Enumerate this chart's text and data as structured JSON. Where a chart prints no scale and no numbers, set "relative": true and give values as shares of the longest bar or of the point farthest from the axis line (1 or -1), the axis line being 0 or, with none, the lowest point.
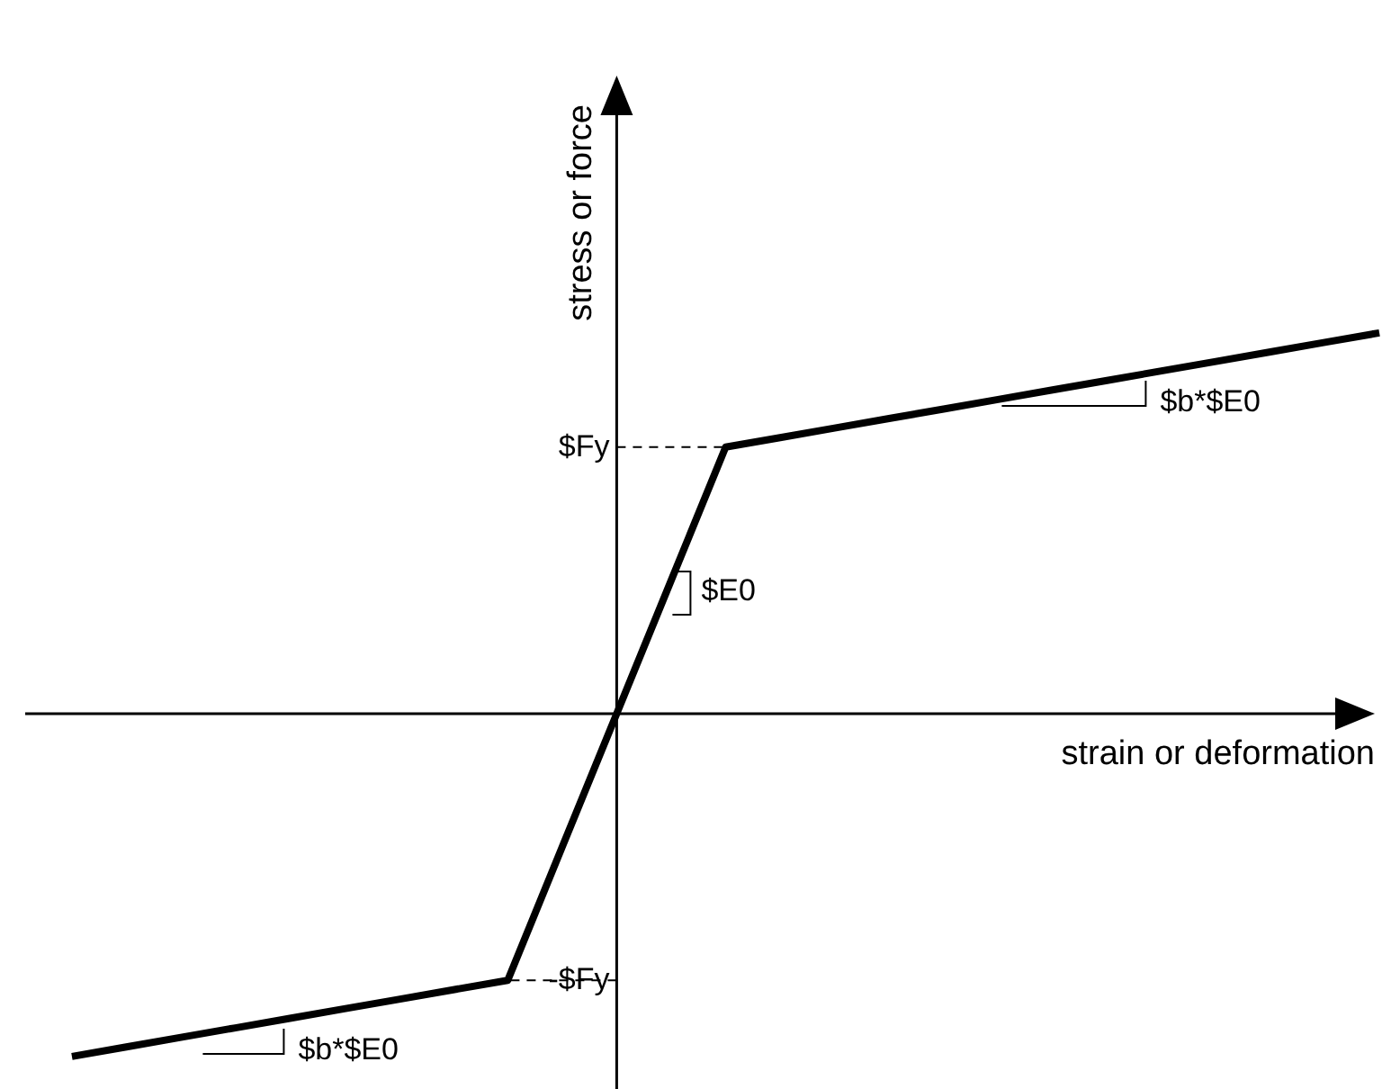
{
  "chart_data": {
    "type": "line",
    "relative": true,
    "xlabel": "strain or deformation",
    "ylabel": "stress or force",
    "categories": [
      null,
      null,
      null,
      null,
      null,
      null,
      null,
      null,
      null,
      null,
      null,
      null,
      null,
      null,
      null,
      null,
      null,
      null,
      null,
      null,
      null,
      null,
      null,
      null,
      null
    ],
    "series": [
      {
        "color": "#000000",
        "values": [
          -0.9,
          -0.875,
          -0.85,
          -0.825,
          -0.8,
          -0.775,
          -0.75,
          -0.725,
          -0.7,
          -0.35,
          0,
          0.35,
          0.7,
          0.725,
          0.75,
          0.775,
          0.8,
          0.825,
          0.85,
          0.875,
          0.9,
          0.925,
          0.95,
          0.975,
          1
        ]
      }
    ],
    "ref_lines": [
      {
        "axis": "y",
        "value": 0.7,
        "label": "$Fy",
        "line_style": "dashed"
      },
      {
        "axis": "y",
        "value": -0.7,
        "label": "-$Fy",
        "line_style": "dashed"
      }
    ],
    "annotations": [
      "$E0",
      "$b*$E0",
      "$b*$E0"
    ],
    "grid": false,
    "marker": "none",
    "line_style": "solid"
  }
}
